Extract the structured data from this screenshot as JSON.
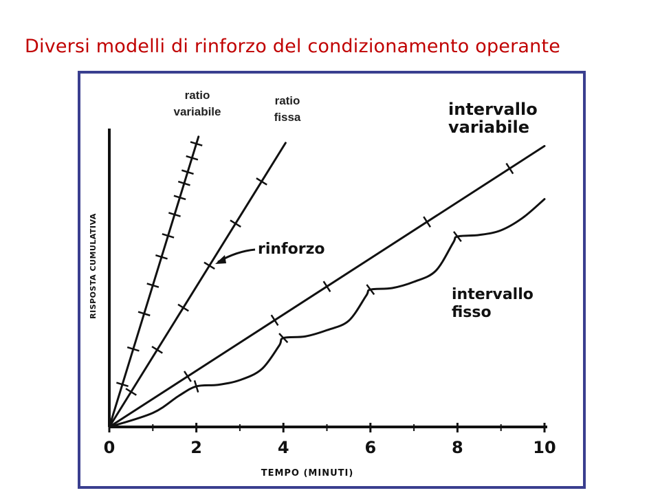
{
  "slide": {
    "title": "Diversi modelli di rinforzo del condizionamento operante"
  },
  "chart_data": {
    "type": "line",
    "title": "",
    "xlabel": "TEMPO (MINUTI)",
    "ylabel": "RISPOSTA CUMULATIVA",
    "xlim": [
      0,
      10
    ],
    "x_ticks": [
      0,
      2,
      4,
      6,
      8,
      10
    ],
    "grid": false,
    "annotations": {
      "ratio_variabile": [
        "ratio",
        "variabile"
      ],
      "ratio_fissa": [
        "ratio",
        "fissa"
      ],
      "intervallo_variabile": [
        "intervallo",
        "variabile"
      ],
      "intervallo_fisso": [
        "intervallo",
        "fisso"
      ],
      "rinforzo": "rinforzo"
    },
    "series": [
      {
        "key": "ratio_variabile",
        "x": [
          0,
          2.05
        ],
        "y": [
          0,
          9.3
        ],
        "reinforcement_x": [
          0.3,
          0.55,
          0.8,
          1.0,
          1.2,
          1.35,
          1.5,
          1.62,
          1.72,
          1.8,
          1.9,
          2.0
        ]
      },
      {
        "key": "ratio_fissa",
        "x": [
          0,
          4.05
        ],
        "y": [
          0,
          9.1
        ],
        "reinforcement_x": [
          0.5,
          1.1,
          1.7,
          2.3,
          2.9,
          3.5
        ]
      },
      {
        "key": "intervallo_variabile",
        "x": [
          0,
          10
        ],
        "y": [
          0,
          9.0
        ],
        "reinforcement_x": [
          1.8,
          3.8,
          5.0,
          7.3,
          9.2
        ]
      },
      {
        "key": "intervallo_fisso",
        "x": [
          0,
          1.0,
          1.6,
          2.0,
          2.5,
          3.0,
          3.5,
          3.9,
          4.0,
          4.5,
          5.0,
          5.5,
          5.9,
          6.0,
          6.5,
          7.0,
          7.5,
          7.9,
          8.0,
          8.5,
          9.0,
          9.5,
          10.0
        ],
        "y": [
          0,
          0.45,
          1.0,
          1.3,
          1.35,
          1.5,
          1.85,
          2.6,
          2.85,
          2.9,
          3.1,
          3.4,
          4.2,
          4.4,
          4.45,
          4.65,
          5.0,
          5.9,
          6.1,
          6.15,
          6.3,
          6.7,
          7.3
        ],
        "reinforcement_x": [
          2.0,
          4.0,
          6.0,
          8.0
        ]
      }
    ]
  }
}
